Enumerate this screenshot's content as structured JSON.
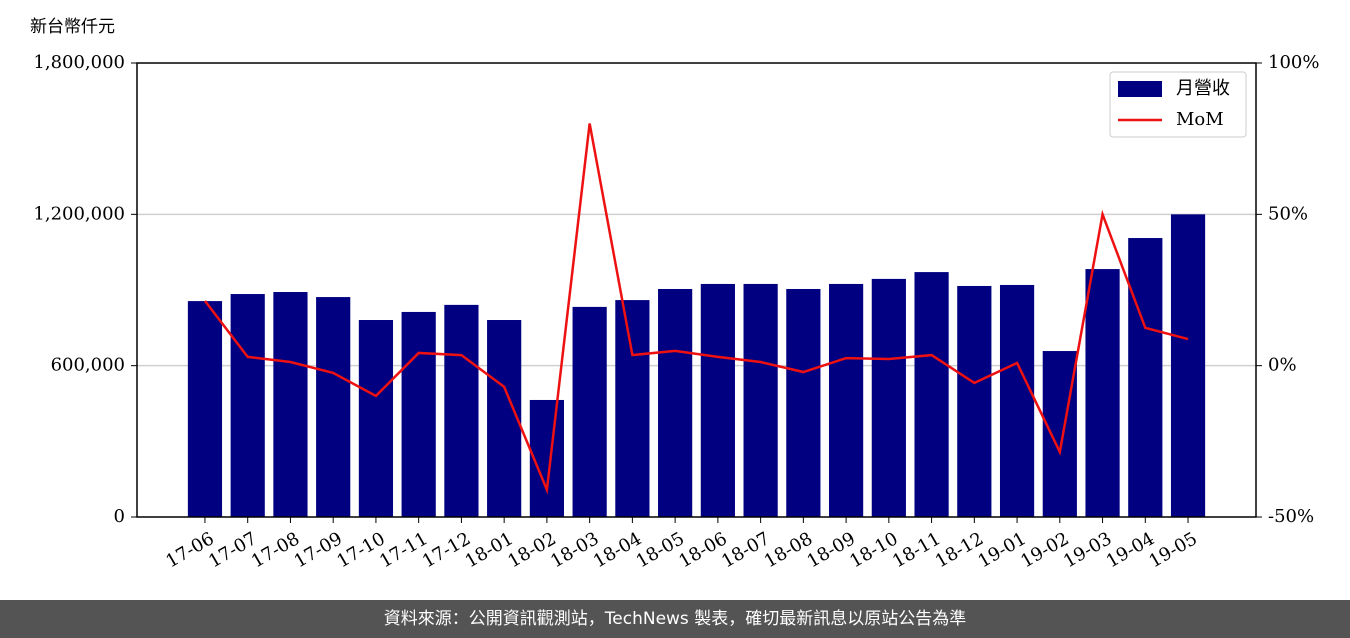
{
  "chart_data": {
    "type": "bar_line",
    "unit_label": "新台幣仟元",
    "categories": [
      "17-06",
      "17-07",
      "17-08",
      "17-09",
      "17-10",
      "17-11",
      "17-12",
      "18-01",
      "18-02",
      "18-03",
      "18-04",
      "18-05",
      "18-06",
      "18-07",
      "18-08",
      "18-09",
      "18-10",
      "18-11",
      "18-12",
      "19-01",
      "19-02",
      "19-03",
      "19-04",
      "19-05"
    ],
    "series": [
      {
        "name": "月營收",
        "type": "bar",
        "color": "#000080",
        "values": [
          856000,
          884000,
          892000,
          872000,
          781000,
          813000,
          841000,
          781000,
          464000,
          833000,
          860000,
          904000,
          924000,
          924000,
          904000,
          924000,
          944000,
          971000,
          916000,
          920000,
          658000,
          983000,
          1106000,
          1200000
        ]
      },
      {
        "name": "MoM",
        "type": "line",
        "axis": "y2",
        "color": "#ee1111",
        "values": [
          21.4,
          2.9,
          1.2,
          -2.4,
          -10,
          4.2,
          3.5,
          -7,
          -41,
          80,
          3.5,
          4.9,
          2.9,
          1.2,
          -2.1,
          2.5,
          2.2,
          3.5,
          -5.7,
          0.9,
          -28.5,
          50,
          12.5,
          8.8
        ]
      }
    ],
    "ylim": [
      0,
      1800000
    ],
    "yticks": [
      0,
      {
        "value": 600000,
        "label": "600,000"
      },
      {
        "value": 1200000,
        "label": "1,200,000"
      },
      {
        "value": 1800000,
        "label": "1,800,000"
      }
    ],
    "y2lim": [
      -50,
      100
    ],
    "y2ticks": [
      {
        "value": -50,
        "label": "-50%"
      },
      {
        "value": 0,
        "label": "0%"
      },
      {
        "value": 50,
        "label": "50%"
      },
      {
        "value": 100,
        "label": "100%"
      }
    ],
    "grid": true,
    "legend": "upper right"
  },
  "footer": "資料來源：公開資訊觀測站，TechNews 製表，確切最新訊息以原站公告為準"
}
